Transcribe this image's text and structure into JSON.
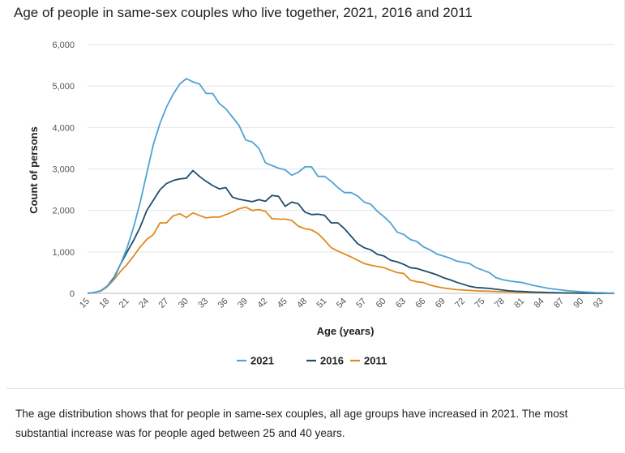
{
  "title": "Age of people in same-sex couples who live together, 2021, 2016 and 2011",
  "caption": "The age distribution shows that for people in same-sex couples, all age groups have increased in 2021. The most substantial increase was for people aged between 25 and 40 years.",
  "chart_data": {
    "type": "line",
    "xlabel": "Age (years)",
    "ylabel": "Count of persons",
    "ylim": [
      0,
      6000
    ],
    "yticks": [
      0,
      1000,
      2000,
      3000,
      4000,
      5000,
      6000
    ],
    "ytick_labels": [
      "0",
      "1,000",
      "2,000",
      "3,000",
      "4,000",
      "5,000",
      "6,000"
    ],
    "xlim": [
      15,
      95
    ],
    "xticks": [
      15,
      18,
      21,
      24,
      27,
      30,
      33,
      36,
      39,
      42,
      45,
      48,
      51,
      54,
      57,
      60,
      63,
      66,
      69,
      72,
      75,
      78,
      81,
      84,
      87,
      90,
      93
    ],
    "grid": "horizontal",
    "legend": "bottom-center",
    "x": [
      15,
      16,
      17,
      18,
      19,
      20,
      21,
      22,
      23,
      24,
      25,
      26,
      27,
      28,
      29,
      30,
      31,
      32,
      33,
      34,
      35,
      36,
      37,
      38,
      39,
      40,
      41,
      42,
      43,
      44,
      45,
      46,
      47,
      48,
      49,
      50,
      51,
      52,
      53,
      54,
      55,
      56,
      57,
      58,
      59,
      60,
      61,
      62,
      63,
      64,
      65,
      66,
      67,
      68,
      69,
      70,
      71,
      72,
      73,
      74,
      75,
      76,
      77,
      78,
      79,
      80,
      81,
      82,
      83,
      84,
      85,
      86,
      87,
      88,
      89,
      90,
      91,
      92,
      93,
      94,
      95
    ],
    "series": [
      {
        "name": "2021",
        "color": "#4ea3d6",
        "values": [
          0,
          20,
          60,
          180,
          350,
          700,
          1100,
          1600,
          2200,
          2900,
          3600,
          4100,
          4500,
          4800,
          5050,
          5180,
          5100,
          5050,
          4820,
          4820,
          4580,
          4450,
          4250,
          4050,
          3700,
          3650,
          3500,
          3150,
          3080,
          3020,
          2980,
          2850,
          2920,
          3050,
          3050,
          2820,
          2820,
          2700,
          2550,
          2430,
          2430,
          2350,
          2200,
          2150,
          1980,
          1850,
          1700,
          1480,
          1420,
          1300,
          1250,
          1120,
          1050,
          950,
          900,
          850,
          780,
          750,
          720,
          620,
          560,
          500,
          380,
          330,
          300,
          280,
          260,
          220,
          180,
          150,
          120,
          100,
          80,
          60,
          50,
          40,
          30,
          20,
          15,
          10,
          8
        ]
      },
      {
        "name": "2016",
        "color": "#1f4e6e",
        "values": [
          0,
          20,
          60,
          180,
          380,
          700,
          1000,
          1280,
          1600,
          2000,
          2250,
          2500,
          2650,
          2720,
          2760,
          2780,
          2960,
          2820,
          2700,
          2600,
          2520,
          2550,
          2320,
          2270,
          2240,
          2210,
          2260,
          2220,
          2360,
          2340,
          2100,
          2200,
          2160,
          1960,
          1900,
          1910,
          1880,
          1700,
          1700,
          1560,
          1380,
          1200,
          1100,
          1050,
          940,
          900,
          800,
          760,
          700,
          620,
          600,
          550,
          500,
          450,
          380,
          330,
          270,
          220,
          170,
          140,
          130,
          120,
          100,
          80,
          60,
          50,
          45,
          35,
          30,
          25,
          20,
          15,
          12,
          10,
          8,
          6,
          5,
          4,
          3,
          2,
          2
        ]
      },
      {
        "name": "2011",
        "color": "#e08a1e",
        "values": [
          0,
          20,
          50,
          160,
          330,
          530,
          700,
          900,
          1120,
          1300,
          1420,
          1700,
          1700,
          1870,
          1920,
          1830,
          1940,
          1880,
          1820,
          1840,
          1840,
          1900,
          1960,
          2040,
          2080,
          2000,
          2020,
          1980,
          1800,
          1790,
          1790,
          1760,
          1620,
          1560,
          1530,
          1440,
          1280,
          1100,
          1020,
          950,
          880,
          800,
          720,
          680,
          650,
          620,
          560,
          500,
          480,
          320,
          280,
          260,
          200,
          160,
          130,
          110,
          90,
          80,
          70,
          60,
          55,
          50,
          45,
          40,
          35,
          30,
          25,
          20,
          18,
          15,
          12,
          10,
          8,
          6,
          5,
          4,
          3,
          2,
          2,
          1,
          1
        ]
      }
    ]
  }
}
